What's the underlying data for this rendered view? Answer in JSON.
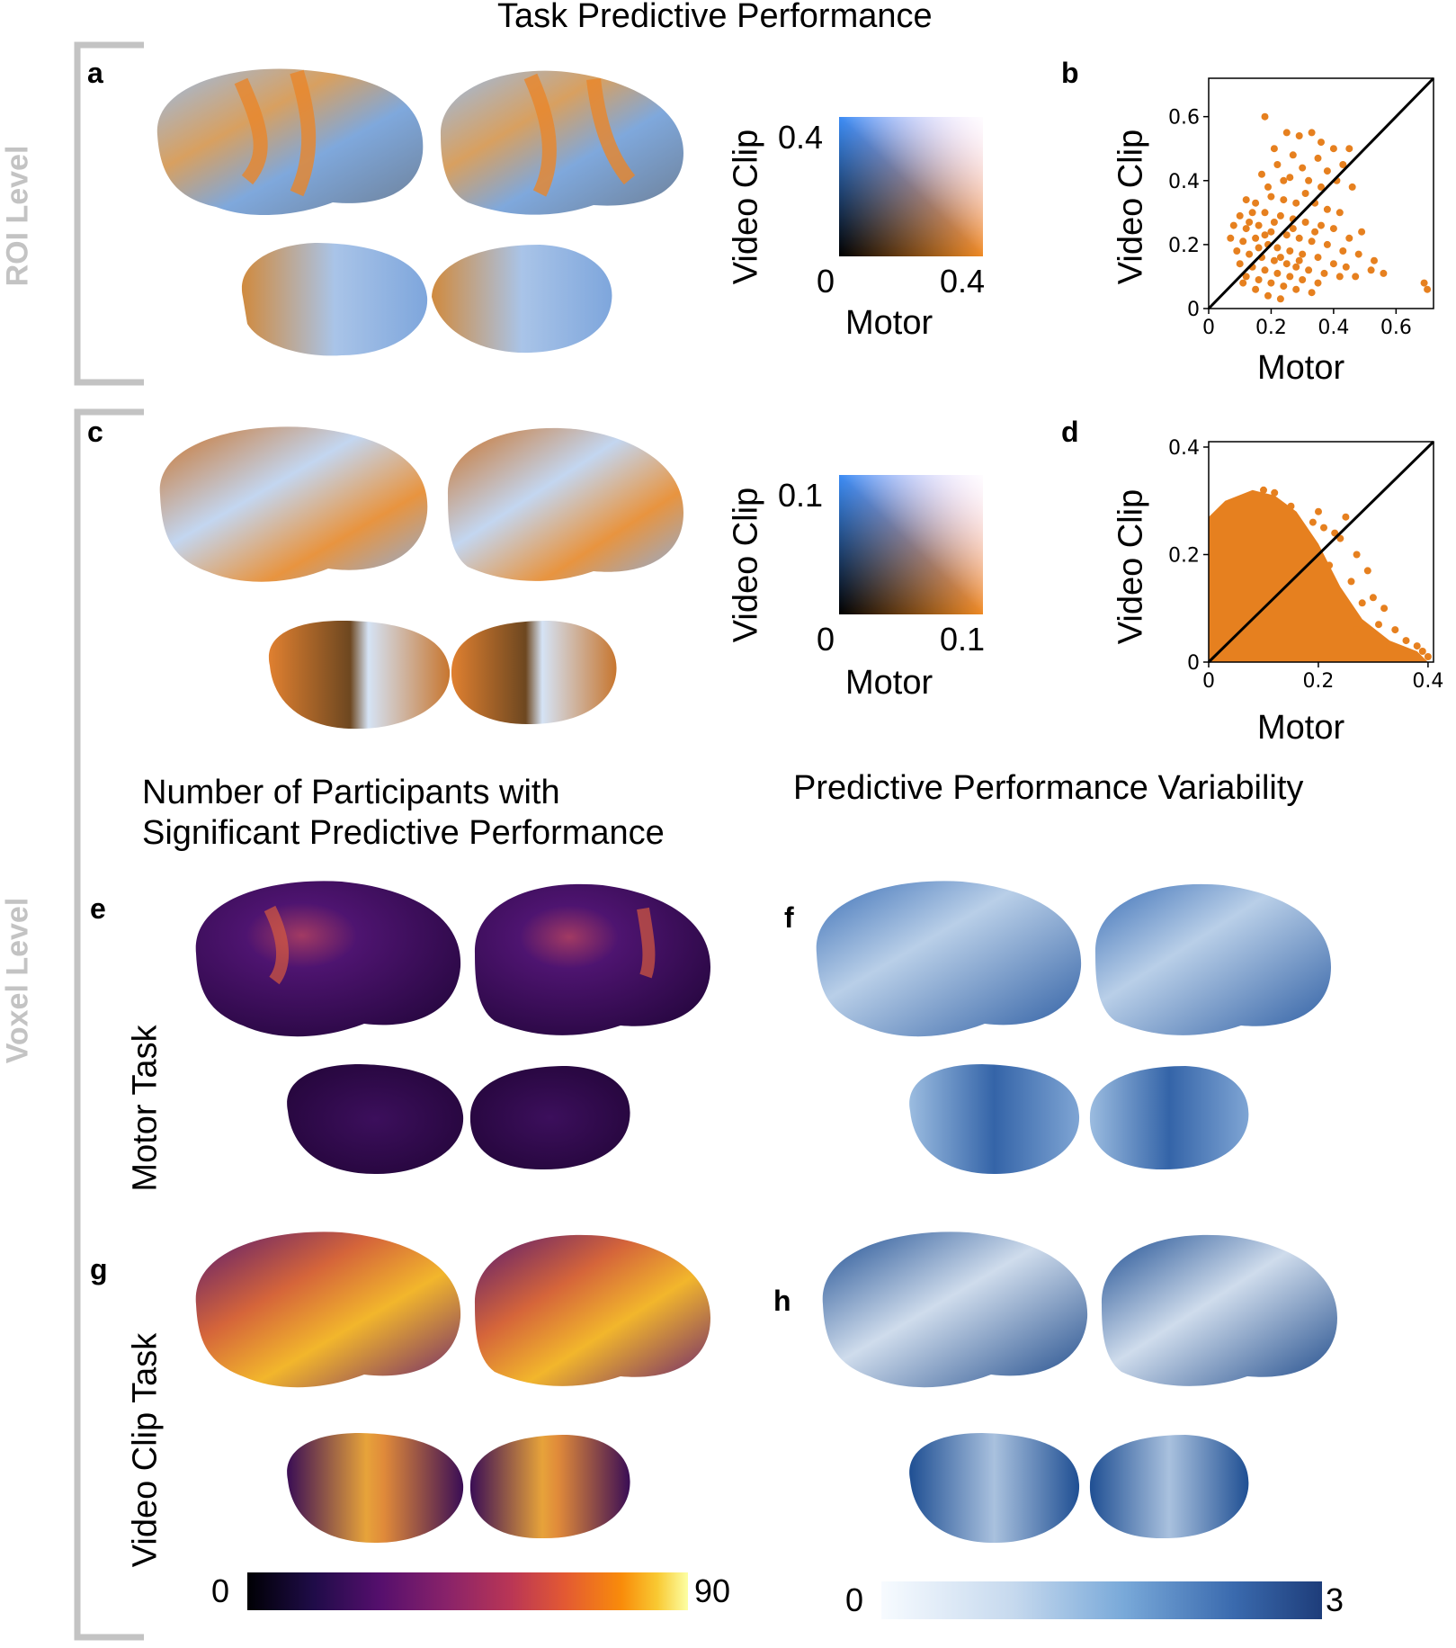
{
  "figure": {
    "title_top": "Task Predictive Performance",
    "left_group": "ROI Level",
    "left_group2": "Voxel Level",
    "title_left": [
      "Number of Participants with",
      "Significant Predictive Performance"
    ],
    "title_right": "Predictive Performance Variability",
    "row_labels": {
      "motor": "Motor Task",
      "video": "Video Clip Task"
    },
    "panel_letters": [
      "a",
      "b",
      "c",
      "d",
      "e",
      "f",
      "g",
      "h"
    ]
  },
  "legends": {
    "roi": {
      "ylabel": "Video Clip",
      "xlabel": "Motor",
      "y_max": "0.4",
      "zero": "0",
      "x_max": "0.4"
    },
    "voxel": {
      "ylabel": "Video Clip",
      "xlabel": "Motor",
      "y_max": "0.1",
      "zero": "0",
      "x_max": "0.1"
    },
    "participants": {
      "min": "0",
      "max": "90"
    },
    "variability": {
      "min": "0",
      "max": "3"
    }
  },
  "colors": {
    "orange": "#e6801f",
    "blue": "#4a8ff0",
    "navy": "#1e3d7a",
    "purple_dark": "#2b0a42",
    "grey_bracket": "#c3c3c3"
  },
  "chart_data": [
    {
      "type": "scatter",
      "panel": "b",
      "xlabel": "Motor",
      "ylabel": "Video Clip",
      "xlim": [
        0,
        0.72
      ],
      "ylim": [
        0,
        0.72
      ],
      "xticks": [
        "0",
        "0.2",
        "0.4",
        "0.6"
      ],
      "yticks": [
        "0",
        "0.2",
        "0.4",
        "0.6"
      ],
      "identity_line": true,
      "color": "#e6801f",
      "points": [
        [
          0.18,
          0.6
        ],
        [
          0.25,
          0.55
        ],
        [
          0.29,
          0.54
        ],
        [
          0.33,
          0.55
        ],
        [
          0.36,
          0.52
        ],
        [
          0.4,
          0.5
        ],
        [
          0.45,
          0.5
        ],
        [
          0.21,
          0.5
        ],
        [
          0.27,
          0.48
        ],
        [
          0.35,
          0.47
        ],
        [
          0.22,
          0.45
        ],
        [
          0.3,
          0.44
        ],
        [
          0.38,
          0.43
        ],
        [
          0.43,
          0.45
        ],
        [
          0.26,
          0.41
        ],
        [
          0.32,
          0.4
        ],
        [
          0.36,
          0.38
        ],
        [
          0.41,
          0.4
        ],
        [
          0.46,
          0.38
        ],
        [
          0.19,
          0.38
        ],
        [
          0.12,
          0.34
        ],
        [
          0.15,
          0.33
        ],
        [
          0.2,
          0.35
        ],
        [
          0.24,
          0.34
        ],
        [
          0.28,
          0.33
        ],
        [
          0.34,
          0.33
        ],
        [
          0.38,
          0.31
        ],
        [
          0.42,
          0.3
        ],
        [
          0.1,
          0.29
        ],
        [
          0.14,
          0.3
        ],
        [
          0.18,
          0.3
        ],
        [
          0.23,
          0.29
        ],
        [
          0.27,
          0.28
        ],
        [
          0.31,
          0.27
        ],
        [
          0.36,
          0.26
        ],
        [
          0.4,
          0.25
        ],
        [
          0.45,
          0.22
        ],
        [
          0.49,
          0.24
        ],
        [
          0.08,
          0.26
        ],
        [
          0.12,
          0.25
        ],
        [
          0.16,
          0.26
        ],
        [
          0.2,
          0.24
        ],
        [
          0.25,
          0.23
        ],
        [
          0.29,
          0.22
        ],
        [
          0.33,
          0.21
        ],
        [
          0.38,
          0.2
        ],
        [
          0.43,
          0.18
        ],
        [
          0.48,
          0.17
        ],
        [
          0.53,
          0.15
        ],
        [
          0.07,
          0.22
        ],
        [
          0.11,
          0.21
        ],
        [
          0.15,
          0.22
        ],
        [
          0.19,
          0.2
        ],
        [
          0.22,
          0.19
        ],
        [
          0.26,
          0.18
        ],
        [
          0.3,
          0.17
        ],
        [
          0.35,
          0.16
        ],
        [
          0.4,
          0.14
        ],
        [
          0.44,
          0.13
        ],
        [
          0.52,
          0.12
        ],
        [
          0.56,
          0.11
        ],
        [
          0.09,
          0.18
        ],
        [
          0.13,
          0.17
        ],
        [
          0.17,
          0.16
        ],
        [
          0.21,
          0.15
        ],
        [
          0.25,
          0.14
        ],
        [
          0.28,
          0.13
        ],
        [
          0.32,
          0.12
        ],
        [
          0.37,
          0.11
        ],
        [
          0.42,
          0.1
        ],
        [
          0.47,
          0.1
        ],
        [
          0.1,
          0.14
        ],
        [
          0.14,
          0.13
        ],
        [
          0.18,
          0.12
        ],
        [
          0.22,
          0.11
        ],
        [
          0.26,
          0.1
        ],
        [
          0.3,
          0.09
        ],
        [
          0.35,
          0.08
        ],
        [
          0.12,
          0.1
        ],
        [
          0.16,
          0.09
        ],
        [
          0.2,
          0.08
        ],
        [
          0.24,
          0.07
        ],
        [
          0.28,
          0.06
        ],
        [
          0.33,
          0.05
        ],
        [
          0.15,
          0.06
        ],
        [
          0.19,
          0.04
        ],
        [
          0.23,
          0.03
        ],
        [
          0.69,
          0.08
        ],
        [
          0.7,
          0.06
        ],
        [
          0.17,
          0.42
        ],
        [
          0.24,
          0.4
        ],
        [
          0.31,
          0.36
        ],
        [
          0.13,
          0.27
        ],
        [
          0.27,
          0.25
        ],
        [
          0.34,
          0.24
        ],
        [
          0.16,
          0.19
        ],
        [
          0.23,
          0.16
        ],
        [
          0.29,
          0.15
        ],
        [
          0.11,
          0.08
        ],
        [
          0.21,
          0.27
        ],
        [
          0.18,
          0.23
        ]
      ]
    },
    {
      "type": "scatter",
      "panel": "d",
      "xlabel": "Motor",
      "ylabel": "Video Clip",
      "xlim": [
        0,
        0.41
      ],
      "ylim": [
        0,
        0.41
      ],
      "xticks": [
        "0",
        "0.2",
        "0.4"
      ],
      "yticks": [
        "0",
        "0.2",
        "0.4"
      ],
      "identity_line": true,
      "color": "#e6801f",
      "density_region": [
        [
          0.0,
          0.0
        ],
        [
          0.0,
          0.27
        ],
        [
          0.03,
          0.3
        ],
        [
          0.08,
          0.32
        ],
        [
          0.12,
          0.31
        ],
        [
          0.16,
          0.28
        ],
        [
          0.2,
          0.22
        ],
        [
          0.24,
          0.14
        ],
        [
          0.28,
          0.08
        ],
        [
          0.33,
          0.04
        ],
        [
          0.38,
          0.02
        ],
        [
          0.4,
          0.0
        ]
      ],
      "points": [
        [
          0.1,
          0.32
        ],
        [
          0.12,
          0.315
        ],
        [
          0.15,
          0.29
        ],
        [
          0.19,
          0.26
        ],
        [
          0.21,
          0.25
        ],
        [
          0.23,
          0.24
        ],
        [
          0.25,
          0.27
        ],
        [
          0.27,
          0.2
        ],
        [
          0.29,
          0.17
        ],
        [
          0.22,
          0.18
        ],
        [
          0.26,
          0.15
        ],
        [
          0.3,
          0.12
        ],
        [
          0.32,
          0.1
        ],
        [
          0.28,
          0.11
        ],
        [
          0.31,
          0.07
        ],
        [
          0.34,
          0.06
        ],
        [
          0.36,
          0.04
        ],
        [
          0.38,
          0.03
        ],
        [
          0.39,
          0.02
        ],
        [
          0.4,
          0.01
        ],
        [
          0.27,
          0.06
        ],
        [
          0.3,
          0.05
        ],
        [
          0.33,
          0.03
        ],
        [
          0.24,
          0.23
        ],
        [
          0.2,
          0.28
        ]
      ]
    }
  ]
}
